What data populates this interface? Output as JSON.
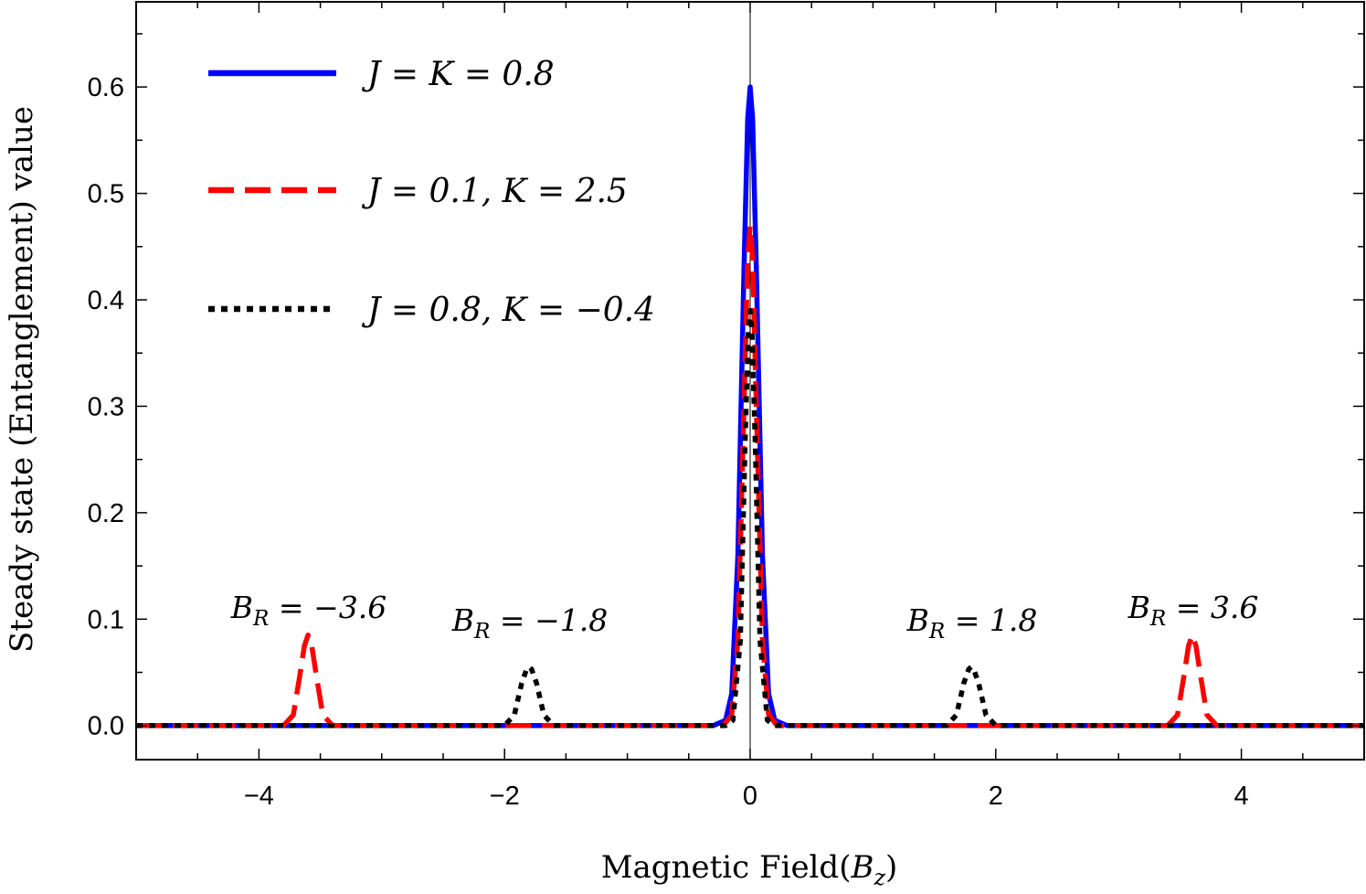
{
  "chart_data": {
    "type": "line",
    "title": "",
    "xlabel": "Magnetic Field(B_z)",
    "ylabel": "Steady state (Entanglement) value",
    "xlim": [
      -5,
      5
    ],
    "ylim": [
      -0.032,
      0.68
    ],
    "xticks": [
      -4,
      -2,
      0,
      2,
      4
    ],
    "xtick_labels": [
      "−4",
      "−2",
      "0",
      "2",
      "4"
    ],
    "yticks": [
      0.0,
      0.1,
      0.2,
      0.3,
      0.4,
      0.5,
      0.6
    ],
    "ytick_labels": [
      "0.0",
      "0.1",
      "0.2",
      "0.3",
      "0.4",
      "0.5",
      "0.6"
    ],
    "grid": false,
    "legend_position": "top-left",
    "series": [
      {
        "name": "J = K = 0.8",
        "color": "#0000ff",
        "style": "solid",
        "x": [
          -5,
          -0.3,
          -0.2,
          -0.15,
          -0.1,
          -0.05,
          -0.02,
          0,
          0.02,
          0.05,
          0.1,
          0.15,
          0.2,
          0.3,
          5
        ],
        "y": [
          0,
          0,
          0.005,
          0.03,
          0.16,
          0.43,
          0.57,
          0.6,
          0.57,
          0.43,
          0.16,
          0.03,
          0.005,
          0,
          0
        ]
      },
      {
        "name": "J = 0.1, K = 2.5",
        "color": "#ff0000",
        "style": "dashed",
        "x": [
          -5,
          -3.8,
          -3.72,
          -3.67,
          -3.63,
          -3.6,
          -3.57,
          -3.53,
          -3.48,
          -3.4,
          -0.22,
          -0.15,
          -0.1,
          -0.05,
          -0.02,
          0,
          0.02,
          0.05,
          0.1,
          0.15,
          0.22,
          3.4,
          3.48,
          3.53,
          3.57,
          3.6,
          3.63,
          3.67,
          3.72,
          3.8,
          5
        ],
        "y": [
          0,
          0,
          0.01,
          0.045,
          0.075,
          0.085,
          0.075,
          0.045,
          0.01,
          0,
          0,
          0.01,
          0.08,
          0.3,
          0.44,
          0.47,
          0.44,
          0.3,
          0.08,
          0.01,
          0,
          0,
          0.01,
          0.045,
          0.075,
          0.085,
          0.075,
          0.045,
          0.01,
          0,
          0
        ]
      },
      {
        "name": "J = 0.8, K = −0.4",
        "color": "#000000",
        "style": "dotted",
        "x": [
          -5,
          -2.0,
          -1.92,
          -1.86,
          -1.82,
          -1.8,
          -1.78,
          -1.74,
          -1.68,
          -1.6,
          -0.2,
          -0.14,
          -0.08,
          -0.04,
          -0.015,
          0,
          0.015,
          0.04,
          0.08,
          0.14,
          0.2,
          1.6,
          1.68,
          1.74,
          1.78,
          1.8,
          1.82,
          1.86,
          1.92,
          2.0,
          5
        ],
        "y": [
          0,
          0,
          0.01,
          0.04,
          0.053,
          0.055,
          0.053,
          0.04,
          0.01,
          0,
          0,
          0.005,
          0.08,
          0.27,
          0.37,
          0.39,
          0.37,
          0.27,
          0.08,
          0.005,
          0,
          0,
          0.01,
          0.04,
          0.053,
          0.055,
          0.053,
          0.04,
          0.01,
          0,
          0
        ]
      }
    ],
    "annotations": [
      {
        "text": "B_R = −3.6",
        "x": -3.6,
        "y": 0.103
      },
      {
        "text": "B_R = −1.8",
        "x": -1.8,
        "y": 0.099
      },
      {
        "text": "B_R = 1.8",
        "x": 1.8,
        "y": 0.099
      },
      {
        "text": "B_R = 3.6",
        "x": 3.6,
        "y": 0.103
      }
    ],
    "vertical_line_x": 0
  }
}
